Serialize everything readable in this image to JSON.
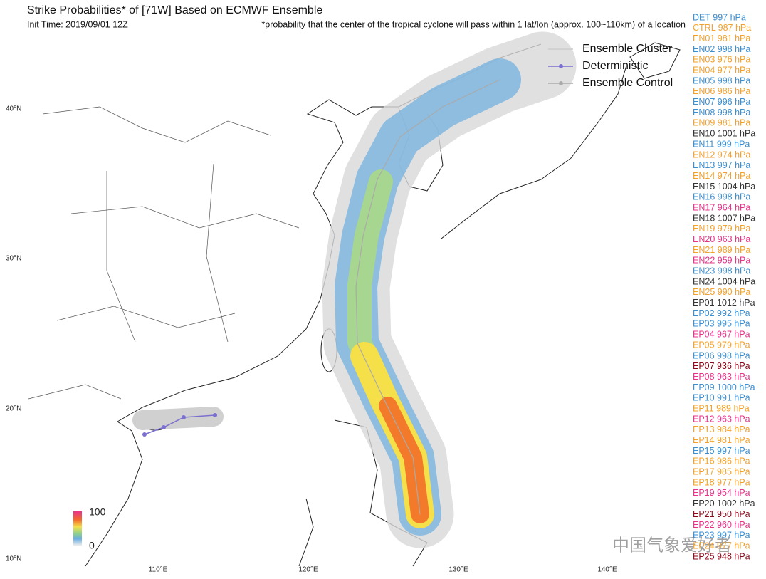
{
  "header": {
    "title": "Strike Probabilities* of [71W] Based on ECMWF Ensemble",
    "init_time": "Init Time: 2019/09/01 12Z",
    "footnote": "*probability that the center of the tropical cyclone will pass within 1 lat/lon (approx. 100~110km) of a location"
  },
  "legend": {
    "items": [
      "Ensemble Cluster",
      "Deterministic",
      "Ensemble Control"
    ]
  },
  "members": [
    {
      "label": "DET 997 hPa",
      "color": "#3b8fd1"
    },
    {
      "label": "CTRL 987 hPa",
      "color": "#f3a12a"
    },
    {
      "label": "EN01 981 hPa",
      "color": "#f3a12a"
    },
    {
      "label": "EN02 998 hPa",
      "color": "#3b8fd1"
    },
    {
      "label": "EN03 976 hPa",
      "color": "#f3a12a"
    },
    {
      "label": "EN04 977 hPa",
      "color": "#f3a12a"
    },
    {
      "label": "EN05 998 hPa",
      "color": "#3b8fd1"
    },
    {
      "label": "EN06 986 hPa",
      "color": "#f3a12a"
    },
    {
      "label": "EN07 996 hPa",
      "color": "#3b8fd1"
    },
    {
      "label": "EN08 998 hPa",
      "color": "#3b8fd1"
    },
    {
      "label": "EN09 981 hPa",
      "color": "#f3a12a"
    },
    {
      "label": "EN10 1001 hPa",
      "color": "#333333"
    },
    {
      "label": "EN11 999 hPa",
      "color": "#3b8fd1"
    },
    {
      "label": "EN12 974 hPa",
      "color": "#f3a12a"
    },
    {
      "label": "EN13 997 hPa",
      "color": "#3b8fd1"
    },
    {
      "label": "EN14 974 hPa",
      "color": "#f3a12a"
    },
    {
      "label": "EN15 1004 hPa",
      "color": "#333333"
    },
    {
      "label": "EN16 998 hPa",
      "color": "#3b8fd1"
    },
    {
      "label": "EN17 964 hPa",
      "color": "#e8338a"
    },
    {
      "label": "EN18 1007 hPa",
      "color": "#333333"
    },
    {
      "label": "EN19 979 hPa",
      "color": "#f3a12a"
    },
    {
      "label": "EN20 963 hPa",
      "color": "#e8338a"
    },
    {
      "label": "EN21 989 hPa",
      "color": "#f3a12a"
    },
    {
      "label": "EN22 959 hPa",
      "color": "#e8338a"
    },
    {
      "label": "EN23 998 hPa",
      "color": "#3b8fd1"
    },
    {
      "label": "EN24 1004 hPa",
      "color": "#333333"
    },
    {
      "label": "EN25 990 hPa",
      "color": "#f3a12a"
    },
    {
      "label": "EP01 1012 hPa",
      "color": "#333333"
    },
    {
      "label": "EP02 992 hPa",
      "color": "#3b8fd1"
    },
    {
      "label": "EP03 995 hPa",
      "color": "#3b8fd1"
    },
    {
      "label": "EP04 967 hPa",
      "color": "#e8338a"
    },
    {
      "label": "EP05 979 hPa",
      "color": "#f3a12a"
    },
    {
      "label": "EP06 998 hPa",
      "color": "#3b8fd1"
    },
    {
      "label": "EP07 936 hPa",
      "color": "#8b0a1a"
    },
    {
      "label": "EP08 963 hPa",
      "color": "#e8338a"
    },
    {
      "label": "EP09 1000 hPa",
      "color": "#3b8fd1"
    },
    {
      "label": "EP10 991 hPa",
      "color": "#3b8fd1"
    },
    {
      "label": "EP11 989 hPa",
      "color": "#f3a12a"
    },
    {
      "label": "EP12 963 hPa",
      "color": "#e8338a"
    },
    {
      "label": "EP13 984 hPa",
      "color": "#f3a12a"
    },
    {
      "label": "EP14 981 hPa",
      "color": "#f3a12a"
    },
    {
      "label": "EP15 997 hPa",
      "color": "#3b8fd1"
    },
    {
      "label": "EP16 986 hPa",
      "color": "#f3a12a"
    },
    {
      "label": "EP17 985 hPa",
      "color": "#f3a12a"
    },
    {
      "label": "EP18 977 hPa",
      "color": "#f3a12a"
    },
    {
      "label": "EP19 954 hPa",
      "color": "#e8338a"
    },
    {
      "label": "EP20 1002 hPa",
      "color": "#333333"
    },
    {
      "label": "EP21 950 hPa",
      "color": "#8b0a1a"
    },
    {
      "label": "EP22 960 hPa",
      "color": "#e8338a"
    },
    {
      "label": "EP23 997 hPa",
      "color": "#3b8fd1"
    },
    {
      "label": "EP24 977 hPa",
      "color": "#f3a12a"
    },
    {
      "label": "EP25 948 hPa",
      "color": "#8b0a1a"
    }
  ],
  "map": {
    "lat_labels": [
      "40°N",
      "30°N",
      "20°N",
      "10°N"
    ],
    "lon_labels": [
      "110°E",
      "120°E",
      "130°E",
      "140°E"
    ]
  },
  "colorbar": {
    "max_label": "100",
    "min_label": "0"
  },
  "watermark": "中国气象爱好者"
}
